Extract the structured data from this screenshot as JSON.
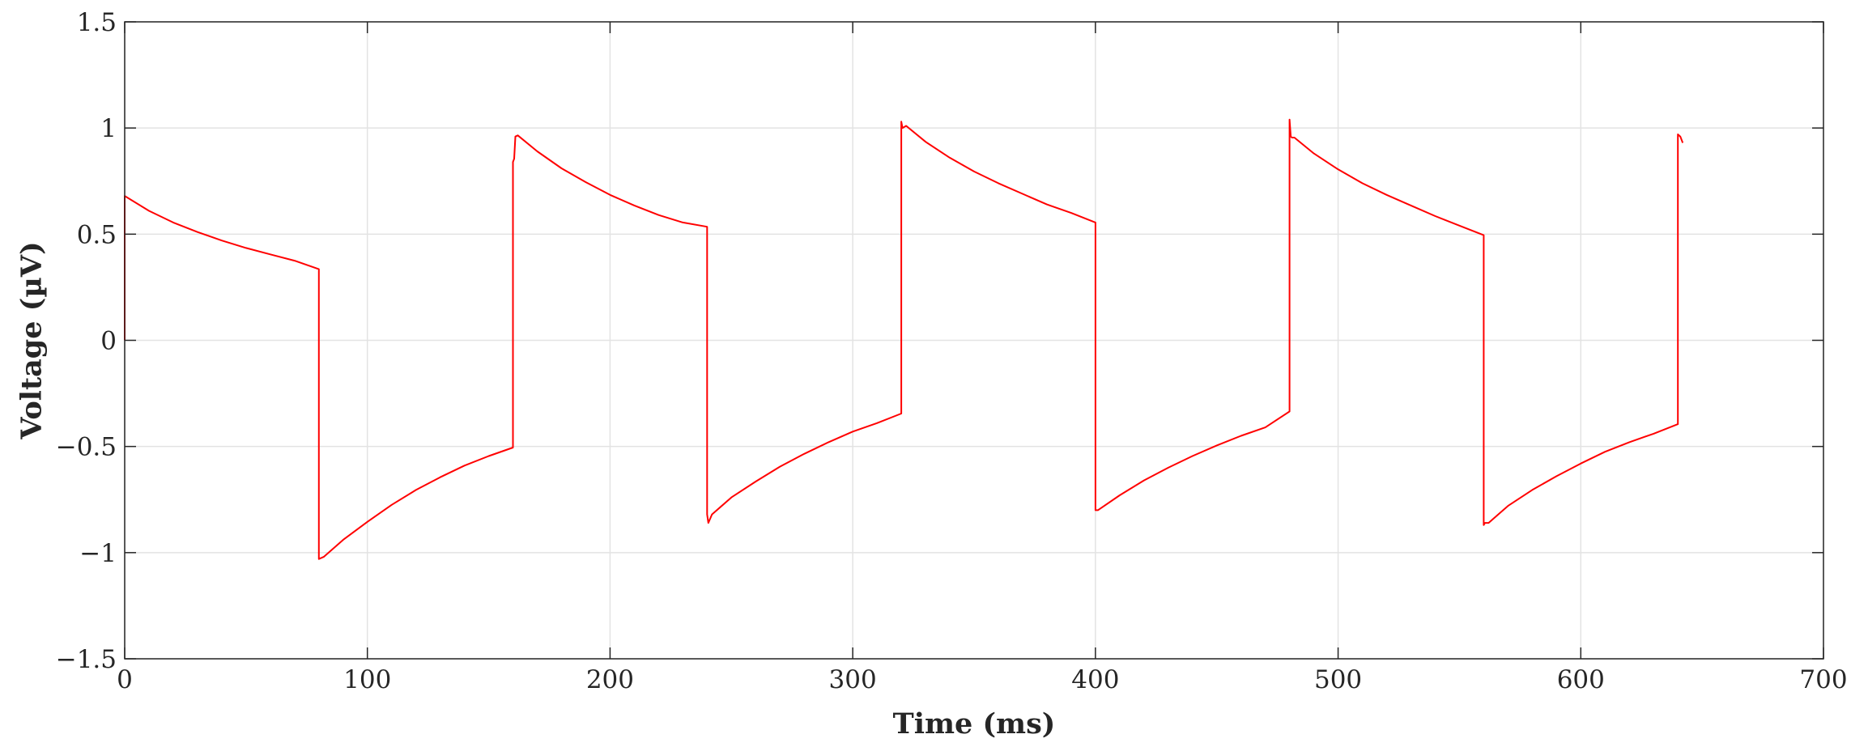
{
  "chart_data": {
    "type": "line",
    "title": "",
    "xlabel": "Time (ms)",
    "ylabel": "Voltage (µV)",
    "xlim": [
      0,
      700
    ],
    "ylim": [
      -1.5,
      1.5
    ],
    "xticks": [
      0,
      100,
      200,
      300,
      400,
      500,
      600,
      700
    ],
    "yticks": [
      -1.5,
      -1,
      -0.5,
      0,
      0.5,
      1,
      1.5
    ],
    "xtick_labels": [
      "0",
      "100",
      "200",
      "300",
      "400",
      "500",
      "600",
      "700"
    ],
    "ytick_labels": [
      "−1.5",
      "−1",
      "−0.5",
      "0",
      "0.5",
      "1",
      "1.5"
    ],
    "grid": true,
    "series": [
      {
        "color": "#ff0000",
        "x": [
          0,
          0,
          10,
          20,
          30,
          40,
          50,
          60,
          70,
          80,
          80,
          82,
          90,
          100,
          110,
          120,
          130,
          140,
          150,
          160,
          160,
          160.5,
          161,
          162,
          170,
          180,
          190,
          200,
          210,
          220,
          230,
          240,
          240,
          240.5,
          242,
          250,
          260,
          270,
          280,
          290,
          300,
          310,
          320,
          320,
          320.5,
          322,
          330,
          340,
          350,
          360,
          370,
          380,
          390,
          400,
          400,
          401,
          410,
          420,
          430,
          440,
          450,
          460,
          470,
          480,
          480,
          480.5,
          481,
          482,
          490,
          500,
          510,
          520,
          530,
          540,
          550,
          560,
          560,
          560.5,
          562,
          570,
          580,
          590,
          600,
          610,
          620,
          630,
          640,
          640,
          641,
          642
        ],
        "y": [
          0,
          0.68,
          0.61,
          0.555,
          0.51,
          0.47,
          0.435,
          0.405,
          0.375,
          0.335,
          -1.03,
          -1.02,
          -0.94,
          -0.855,
          -0.775,
          -0.705,
          -0.645,
          -0.59,
          -0.545,
          -0.505,
          0.84,
          0.855,
          0.96,
          0.965,
          0.89,
          0.81,
          0.745,
          0.685,
          0.635,
          0.59,
          0.555,
          0.535,
          -0.82,
          -0.86,
          -0.82,
          -0.74,
          -0.665,
          -0.595,
          -0.535,
          -0.48,
          -0.43,
          -0.39,
          -0.345,
          1.03,
          1.0,
          1.01,
          0.935,
          0.86,
          0.795,
          0.74,
          0.69,
          0.64,
          0.6,
          0.555,
          -0.8,
          -0.8,
          -0.73,
          -0.66,
          -0.6,
          -0.545,
          -0.495,
          -0.45,
          -0.41,
          -0.335,
          1.04,
          0.96,
          0.955,
          0.955,
          0.88,
          0.805,
          0.74,
          0.685,
          0.635,
          0.585,
          0.54,
          0.495,
          -0.87,
          -0.86,
          -0.86,
          -0.78,
          -0.705,
          -0.64,
          -0.58,
          -0.525,
          -0.48,
          -0.44,
          -0.395,
          0.97,
          0.96,
          0.93
        ]
      }
    ]
  }
}
